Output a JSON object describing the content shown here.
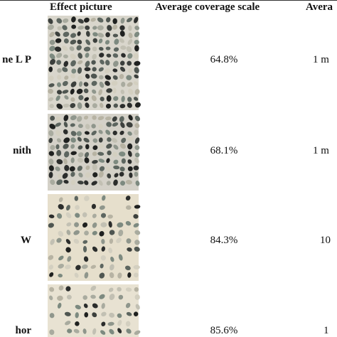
{
  "table": {
    "header": [
      "Effect picture",
      "Average coverage scale",
      "Avera"
    ],
    "rows": [
      [
        "ne L P",
        "64.8%",
        "1 m"
      ],
      [
        "nith",
        "68.1%",
        "1 m"
      ],
      [
        "W",
        "84.3%",
        "10"
      ],
      [
        "hor",
        "85.6%",
        "1"
      ]
    ]
  }
}
